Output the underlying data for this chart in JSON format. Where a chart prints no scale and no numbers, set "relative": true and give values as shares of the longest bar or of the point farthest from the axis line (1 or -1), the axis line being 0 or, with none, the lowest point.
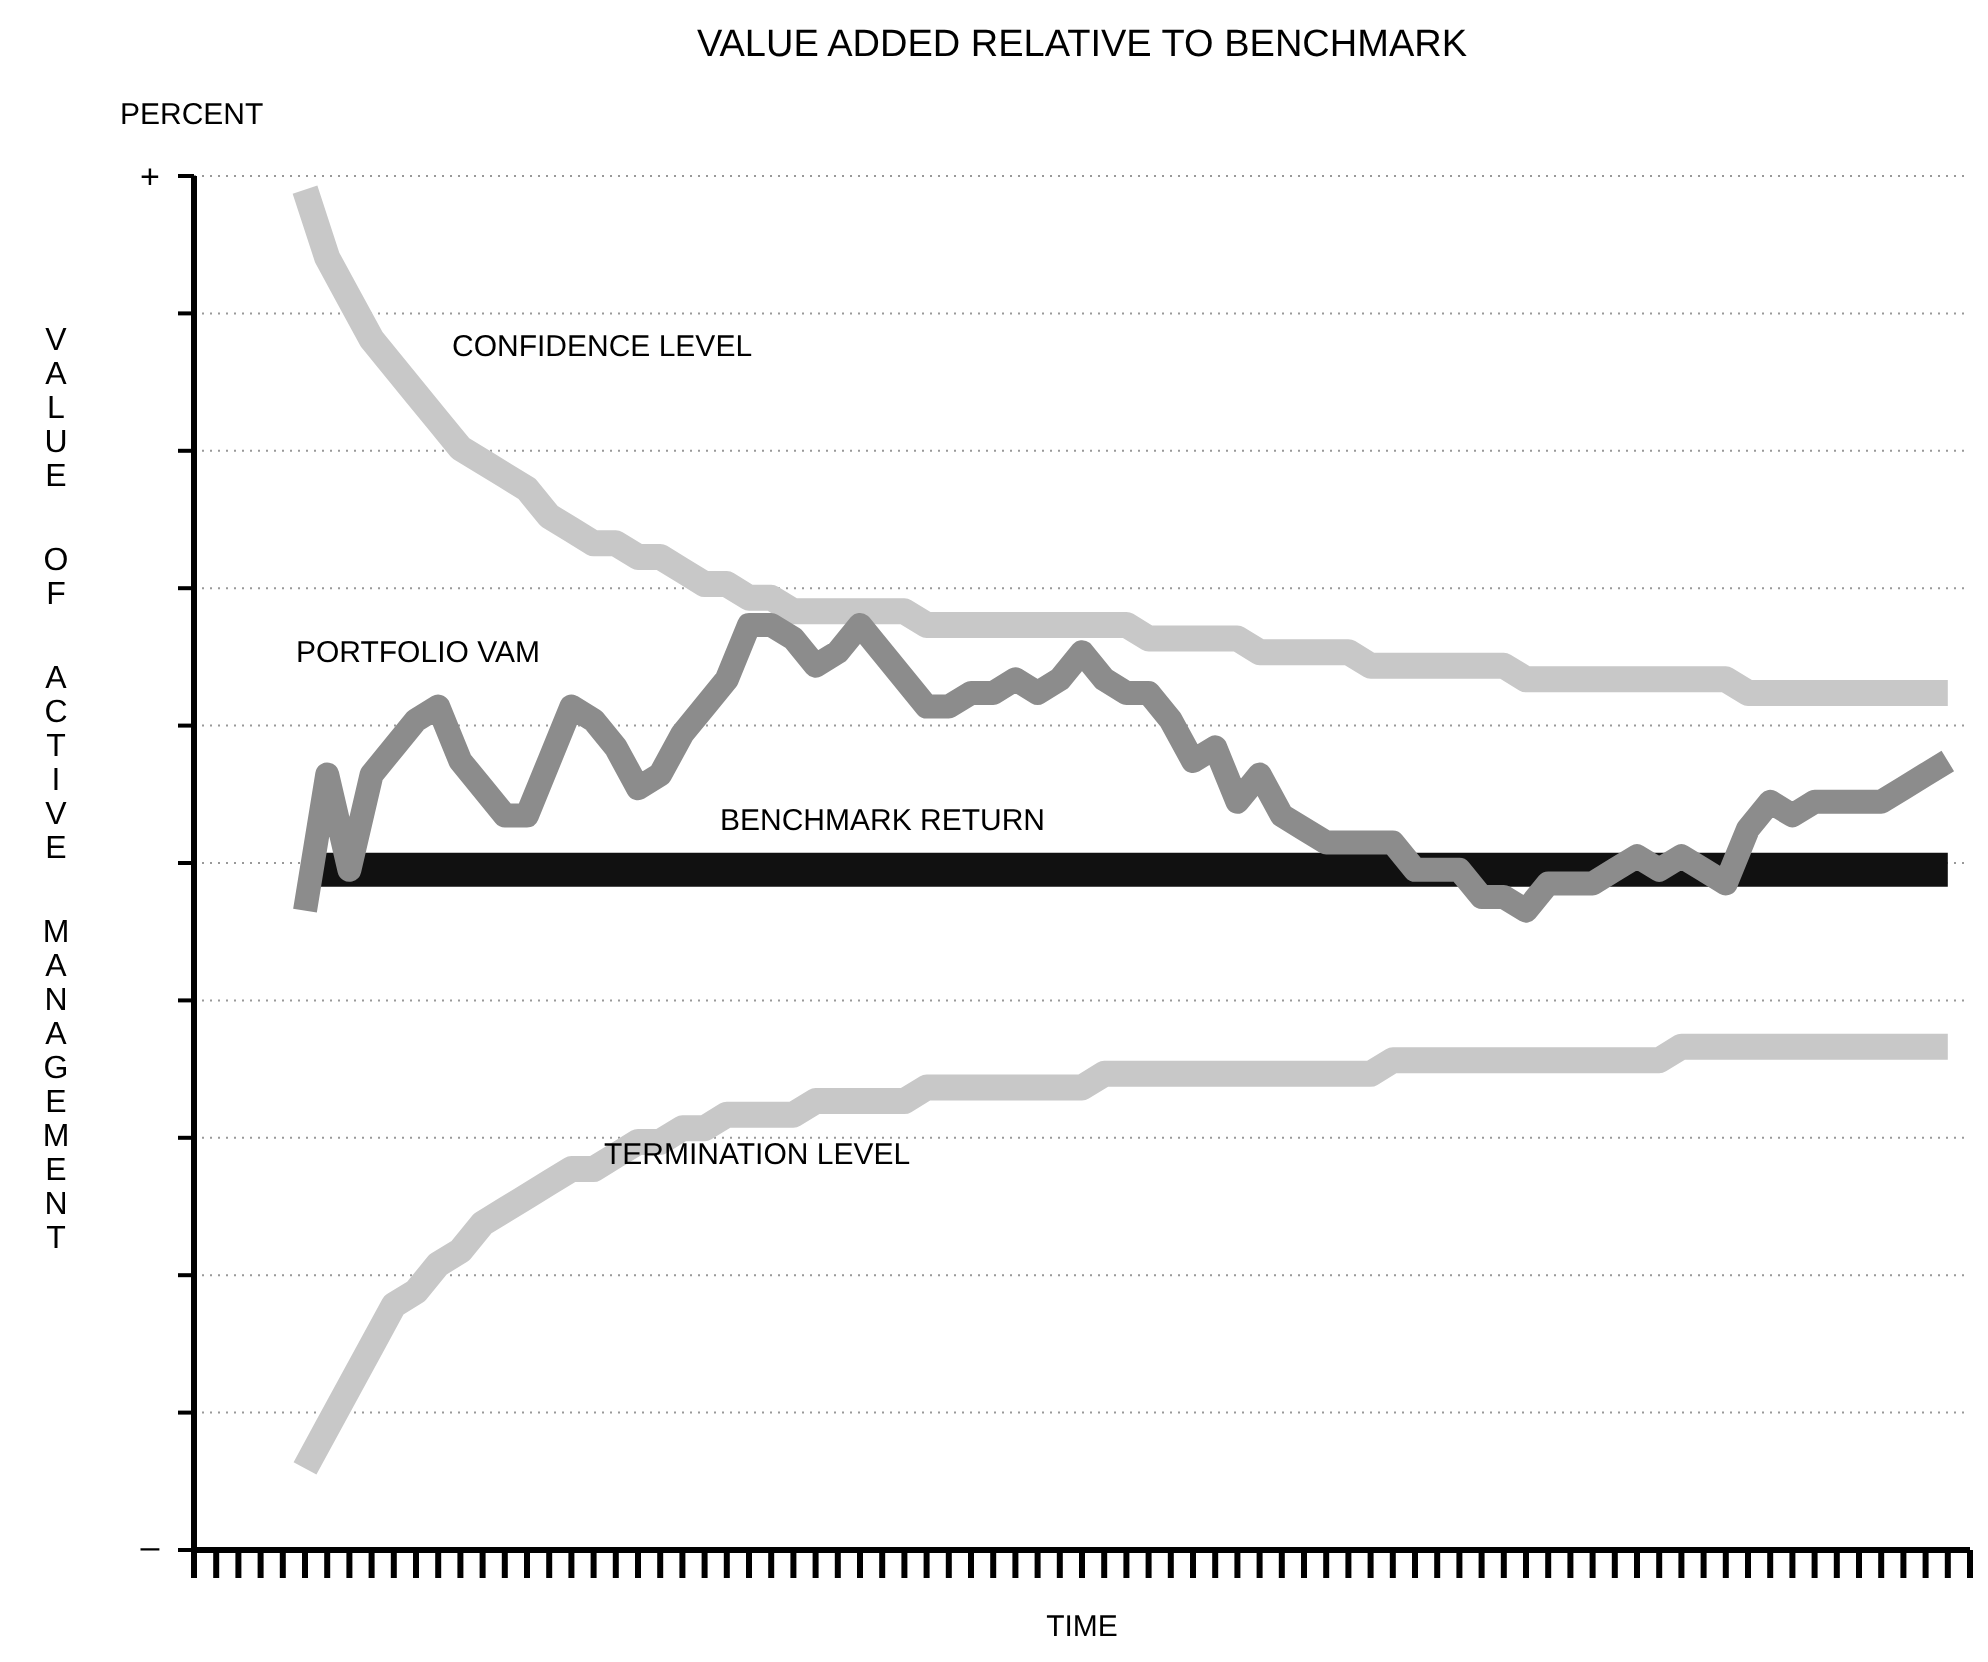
{
  "chart_data": {
    "type": "line",
    "relative": true,
    "title": "VALUE ADDED RELATIVE TO BENCHMARK",
    "xlabel": "TIME",
    "ylabel": "VALUE OF ACTIVE MANAGEMENT",
    "annotations": [
      "PERCENT",
      "+",
      "–"
    ],
    "categories": [
      null,
      null,
      null,
      null,
      null,
      null,
      null,
      null,
      null,
      null,
      null,
      null,
      null,
      null,
      null,
      null,
      null,
      null,
      null,
      null,
      null,
      null,
      null,
      null,
      null,
      null,
      null,
      null,
      null,
      null,
      null,
      null,
      null,
      null,
      null,
      null,
      null,
      null,
      null,
      null,
      null,
      null,
      null,
      null,
      null,
      null,
      null,
      null,
      null,
      null,
      null,
      null,
      null,
      null,
      null,
      null,
      null,
      null,
      null,
      null,
      null,
      null,
      null,
      null,
      null,
      null,
      null,
      null,
      null,
      null,
      null,
      null,
      null,
      null,
      null,
      null,
      null,
      null,
      null,
      null,
      null
    ],
    "grid": "y",
    "series": [
      {
        "name": "CONFIDENCE LEVEL",
        "color": "#c8c8c8",
        "values": [
          null,
          null,
          null,
          null,
          null,
          1.0,
          0.95,
          0.92,
          0.89,
          0.87,
          0.85,
          0.83,
          0.81,
          0.8,
          0.79,
          0.78,
          0.76,
          0.75,
          0.74,
          0.74,
          0.73,
          0.73,
          0.72,
          0.71,
          0.71,
          0.7,
          0.7,
          0.69,
          0.69,
          0.69,
          0.69,
          0.69,
          0.69,
          0.68,
          0.68,
          0.68,
          0.68,
          0.68,
          0.68,
          0.68,
          0.68,
          0.68,
          0.68,
          0.67,
          0.67,
          0.67,
          0.67,
          0.67,
          0.66,
          0.66,
          0.66,
          0.66,
          0.66,
          0.65,
          0.65,
          0.65,
          0.65,
          0.65,
          0.65,
          0.65,
          0.64,
          0.64,
          0.64,
          0.64,
          0.64,
          0.64,
          0.64,
          0.64,
          0.64,
          0.64,
          0.63,
          0.63,
          0.63,
          0.63,
          0.63,
          0.63,
          0.63,
          0.63,
          0.63,
          0.63,
          null
        ]
      },
      {
        "name": "TERMINATION LEVEL",
        "color": "#c8c8c8",
        "values": [
          null,
          null,
          null,
          null,
          null,
          0.06,
          0.09,
          0.12,
          0.15,
          0.18,
          0.19,
          0.21,
          0.22,
          0.24,
          0.25,
          0.26,
          0.27,
          0.28,
          0.28,
          0.29,
          0.3,
          0.3,
          0.31,
          0.31,
          0.32,
          0.32,
          0.32,
          0.32,
          0.33,
          0.33,
          0.33,
          0.33,
          0.33,
          0.34,
          0.34,
          0.34,
          0.34,
          0.34,
          0.34,
          0.34,
          0.34,
          0.35,
          0.35,
          0.35,
          0.35,
          0.35,
          0.35,
          0.35,
          0.35,
          0.35,
          0.35,
          0.35,
          0.35,
          0.35,
          0.36,
          0.36,
          0.36,
          0.36,
          0.36,
          0.36,
          0.36,
          0.36,
          0.36,
          0.36,
          0.36,
          0.36,
          0.36,
          0.37,
          0.37,
          0.37,
          0.37,
          0.37,
          0.37,
          0.37,
          0.37,
          0.37,
          0.37,
          0.37,
          0.37,
          0.37,
          null
        ]
      },
      {
        "name": "PORTFOLIO VAM",
        "color": "#8c8c8c",
        "values": [
          null,
          null,
          null,
          null,
          null,
          0.47,
          0.57,
          0.5,
          0.57,
          0.59,
          0.61,
          0.62,
          0.58,
          0.56,
          0.54,
          0.54,
          0.58,
          0.62,
          0.61,
          0.59,
          0.56,
          0.57,
          0.6,
          0.62,
          0.64,
          0.68,
          0.68,
          0.67,
          0.65,
          0.66,
          0.68,
          0.66,
          0.64,
          0.62,
          0.62,
          0.63,
          0.63,
          0.64,
          0.63,
          0.64,
          0.66,
          0.64,
          0.63,
          0.63,
          0.61,
          0.58,
          0.59,
          0.55,
          0.57,
          0.54,
          0.53,
          0.52,
          0.52,
          0.52,
          0.52,
          0.5,
          0.5,
          0.5,
          0.48,
          0.48,
          0.47,
          0.49,
          0.49,
          0.49,
          0.5,
          0.51,
          0.5,
          0.51,
          0.5,
          0.49,
          0.53,
          0.55,
          0.54,
          0.55,
          0.55,
          0.55,
          0.55,
          0.56,
          0.57,
          0.58,
          null
        ]
      },
      {
        "name": "BENCHMARK RETURN",
        "color": "#111111",
        "values": [
          null,
          null,
          null,
          null,
          null,
          0.5,
          0.5,
          0.5,
          0.5,
          0.5,
          0.5,
          0.5,
          0.5,
          0.5,
          0.5,
          0.5,
          0.5,
          0.5,
          0.5,
          0.5,
          0.5,
          0.5,
          0.5,
          0.5,
          0.5,
          0.5,
          0.5,
          0.5,
          0.5,
          0.5,
          0.5,
          0.5,
          0.5,
          0.5,
          0.5,
          0.5,
          0.5,
          0.5,
          0.5,
          0.5,
          0.5,
          0.5,
          0.5,
          0.5,
          0.5,
          0.5,
          0.5,
          0.5,
          0.5,
          0.5,
          0.5,
          0.5,
          0.5,
          0.5,
          0.5,
          0.5,
          0.5,
          0.5,
          0.5,
          0.5,
          0.5,
          0.5,
          0.5,
          0.5,
          0.5,
          0.5,
          0.5,
          0.5,
          0.5,
          0.5,
          0.5,
          0.5,
          0.5,
          0.5,
          0.5,
          0.5,
          0.5,
          0.5,
          0.5,
          0.5,
          null
        ]
      }
    ]
  }
}
